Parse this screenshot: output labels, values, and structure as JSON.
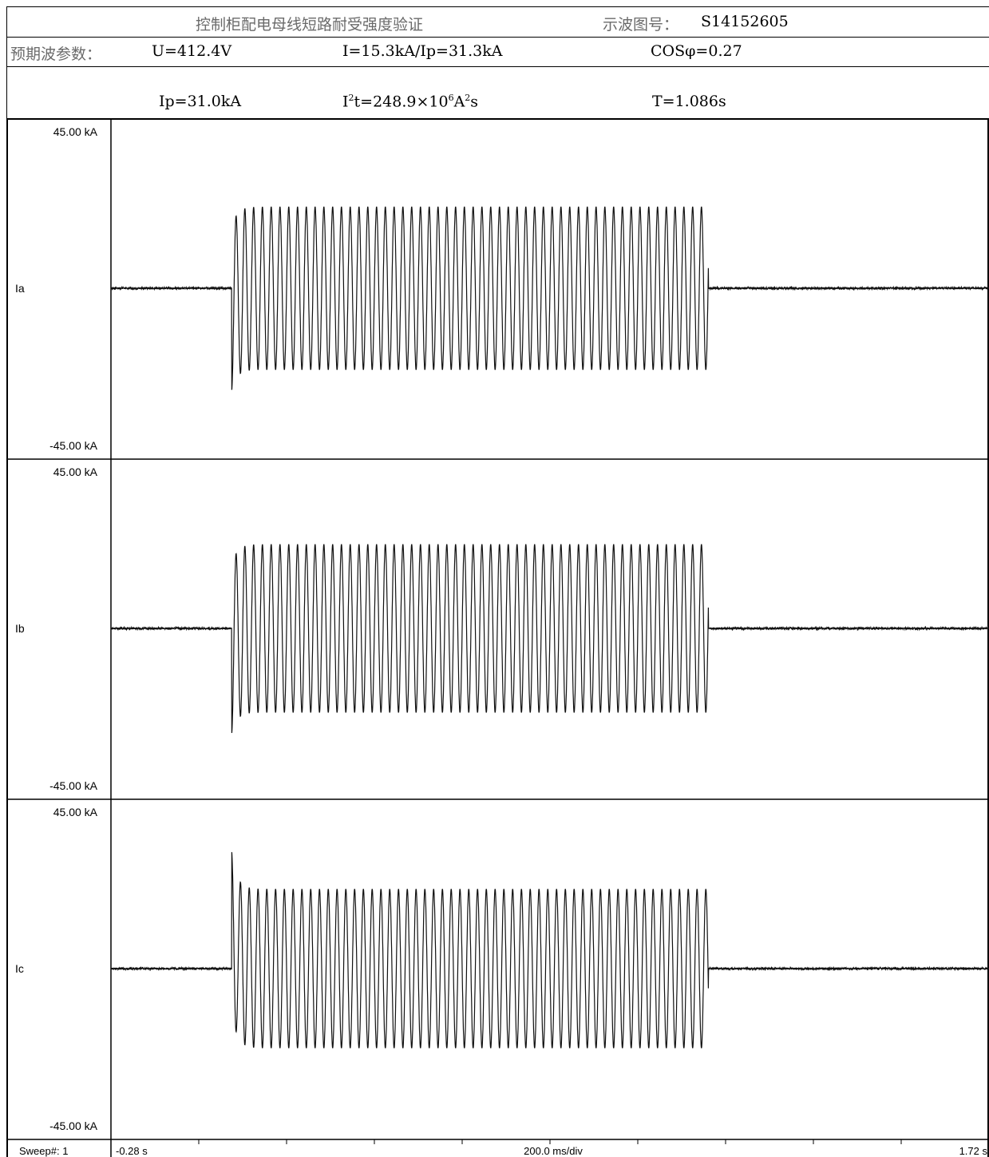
{
  "header": {
    "title": "控制柜配电母线短路耐受强度验证",
    "waveform_label": "示波图号：",
    "waveform_id": "S14152605",
    "params_label": "预期波参数：",
    "voltage": "U=412.4V",
    "current": "I=15.3kA/Ip=31.3kA",
    "power_factor": "COSφ=0.27",
    "ip_actual": "Ip=31.0kA",
    "i2t_prefix": "I",
    "i2t_sup1": "2",
    "i2t_mid": "t=248.9×10",
    "i2t_sup2": "6",
    "i2t_unit": "A",
    "i2t_sup3": "2",
    "i2t_suffix": "s",
    "duration": "T=1.086s"
  },
  "chart_data": {
    "type": "line",
    "x_unit": "s",
    "xlim": [
      -0.28,
      1.72
    ],
    "x_start_label": "-0.28 s",
    "x_end_label": "1.72 s",
    "x_scale_label": "200.0 ms/div",
    "sweep_label": "Sweep#: 1",
    "frequency_hz": 50,
    "fault_start_s": -0.005,
    "fault_end_s": 1.081,
    "series": [
      {
        "name": "Ia",
        "ymax_label": "45.00 kA",
        "ymin_label": "-45.00 kA",
        "ylim": [
          -45,
          45
        ],
        "unit": "kA",
        "steady_amplitude_kA": 21.5,
        "first_peak_kA": -27.0,
        "baseline_kA": 0.0
      },
      {
        "name": "Ib",
        "ymax_label": "45.00 kA",
        "ymin_label": "-45.00 kA",
        "ylim": [
          -45,
          45
        ],
        "unit": "kA",
        "steady_amplitude_kA": 22.2,
        "first_peak_kA": -27.8,
        "baseline_kA": 0.0
      },
      {
        "name": "Ic",
        "ymax_label": "45.00 kA",
        "ymin_label": "-45.00 kA",
        "ylim": [
          -45,
          45
        ],
        "unit": "kA",
        "steady_amplitude_kA": 21.0,
        "first_peak_kA": 31.0,
        "baseline_kA": 0.0
      }
    ]
  }
}
